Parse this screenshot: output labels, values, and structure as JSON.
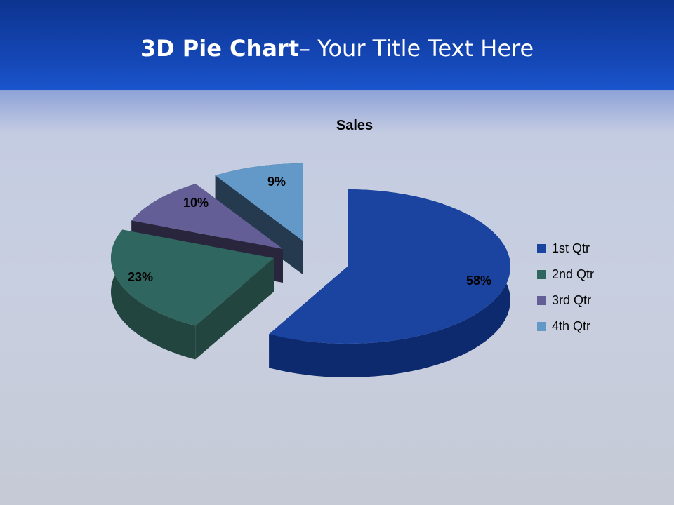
{
  "slide": {
    "title_bold": "3D Pie Chart",
    "title_rest": "– Your Title Text Here"
  },
  "chart_data": {
    "type": "pie",
    "style": "3d-exploded",
    "title": "Sales",
    "categories": [
      "1st Qtr",
      "2nd Qtr",
      "3rd Qtr",
      "4th Qtr"
    ],
    "values": [
      58,
      23,
      10,
      9
    ],
    "data_labels": [
      "58%",
      "23%",
      "10%",
      "9%"
    ],
    "colors": [
      "#1a44a0",
      "#2f6660",
      "#635f96",
      "#6399c9"
    ],
    "legend_position": "right"
  }
}
